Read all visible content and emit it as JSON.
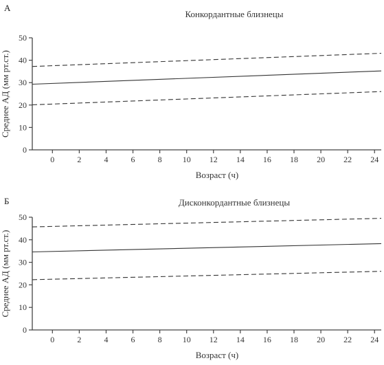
{
  "chart_data": [
    {
      "panel_label": "А",
      "type": "line",
      "title": "Конкордантные близнецы",
      "xlabel": "Возраст (ч)",
      "ylabel": "Среднее АД (мм рт.ст.)",
      "xlim": [
        -1.5,
        24.5
      ],
      "ylim": [
        0,
        50
      ],
      "xticks": [
        0,
        2,
        4,
        6,
        8,
        10,
        12,
        14,
        16,
        18,
        20,
        22,
        24
      ],
      "yticks": [
        0,
        10,
        20,
        30,
        40,
        50
      ],
      "grid": false,
      "series": [
        {
          "style": "dashed",
          "x": [
            -1.5,
            24.5
          ],
          "y": [
            37.2,
            43.1
          ]
        },
        {
          "style": "solid",
          "x": [
            -1.5,
            24.5
          ],
          "y": [
            29.3,
            35.2
          ]
        },
        {
          "style": "dashed",
          "x": [
            -1.5,
            24.5
          ],
          "y": [
            20.1,
            26.0
          ]
        }
      ]
    },
    {
      "panel_label": "Б",
      "type": "line",
      "title": "Дисконкордантные близнецы",
      "xlabel": "Возраст (ч)",
      "ylabel": "Среднее АД (мм рт.ст.)",
      "xlim": [
        -1.5,
        24.5
      ],
      "ylim": [
        0,
        50
      ],
      "xticks": [
        0,
        2,
        4,
        6,
        8,
        10,
        12,
        14,
        16,
        18,
        20,
        22,
        24
      ],
      "yticks": [
        0,
        10,
        20,
        30,
        40,
        50
      ],
      "grid": false,
      "series": [
        {
          "style": "dashed",
          "x": [
            -1.5,
            24.5
          ],
          "y": [
            45.7,
            49.5
          ]
        },
        {
          "style": "solid",
          "x": [
            -1.5,
            24.5
          ],
          "y": [
            34.6,
            38.3
          ]
        },
        {
          "style": "dashed",
          "x": [
            -1.5,
            24.5
          ],
          "y": [
            22.3,
            26.0
          ]
        }
      ]
    }
  ]
}
